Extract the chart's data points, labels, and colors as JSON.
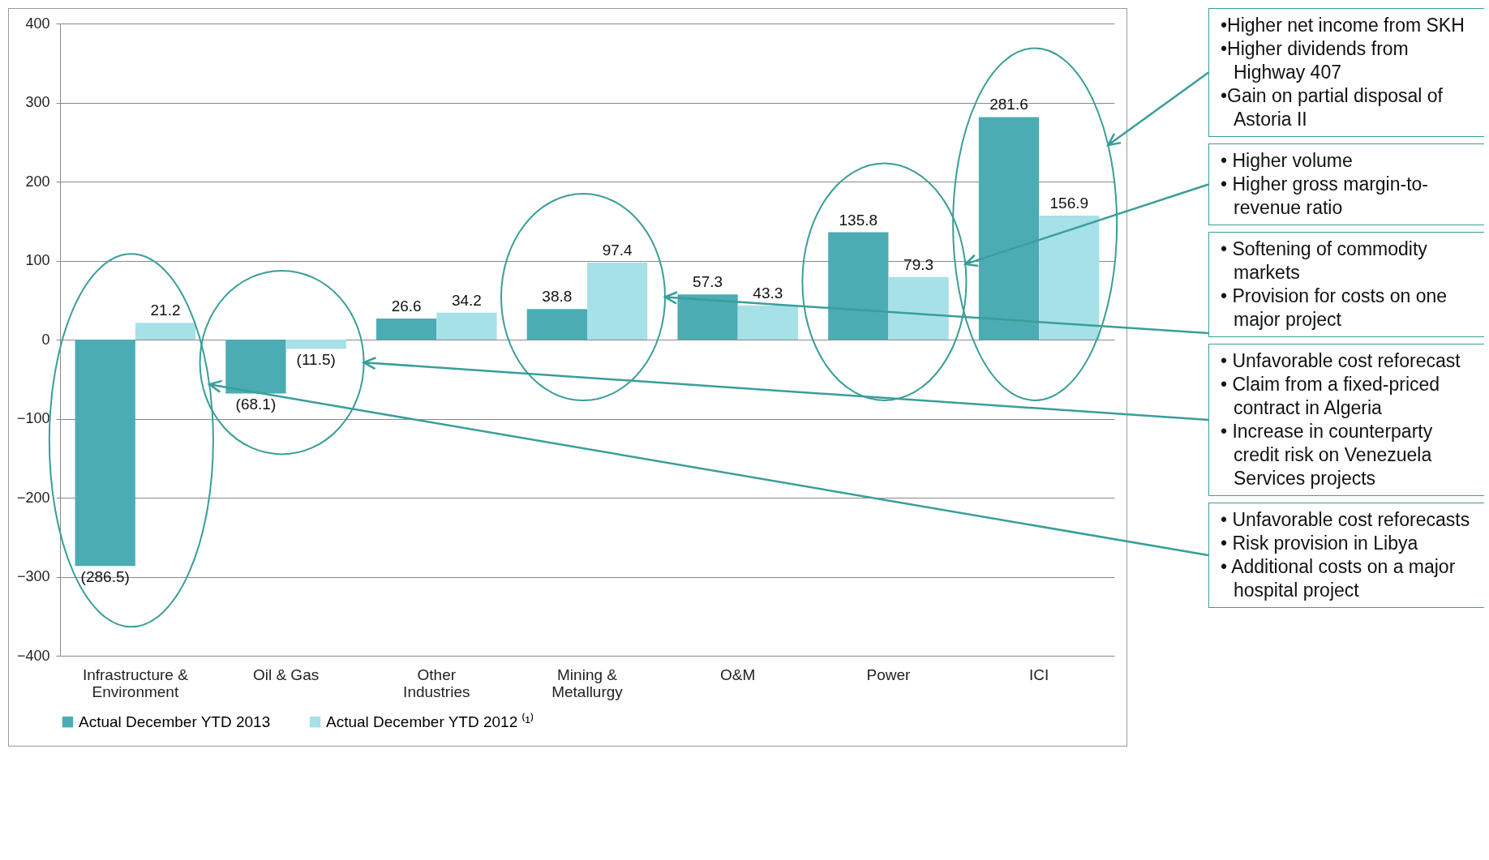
{
  "chart_data": {
    "type": "bar",
    "categories": [
      "Infrastructure & Environment",
      "Oil & Gas",
      "Other Industries",
      "Mining & Metallurgy",
      "O&M",
      "Power",
      "ICI"
    ],
    "series": [
      {
        "name": "Actual December YTD  2013",
        "color": "#4bacb4",
        "values": [
          -286.5,
          -68.1,
          26.6,
          38.8,
          57.3,
          135.8,
          281.6
        ],
        "value_labels": [
          "(286.5)",
          "(68.1)",
          "26.6",
          "38.8",
          "57.3",
          "135.8",
          "281.6"
        ]
      },
      {
        "name": "Actual December YTD  2012 ⁽¹⁾",
        "color": "#a6e1e8",
        "values": [
          21.2,
          -11.5,
          34.2,
          97.4,
          43.3,
          79.3,
          156.9
        ],
        "value_labels": [
          "21.2",
          "(11.5)",
          "34.2",
          "97.4",
          "43.3",
          "79.3",
          "156.9"
        ]
      }
    ],
    "ylim": [
      -400,
      400
    ],
    "yticks": [
      -400,
      -300,
      -200,
      -100,
      0,
      100,
      200,
      300,
      400
    ],
    "grid": "y",
    "legend": "bottom",
    "annotations": [
      "•Higher net income from SKH\n•Higher dividends from Highway 407\n•Gain on partial disposal of Astoria II",
      "• Higher volume\n• Higher gross margin-to-revenue ratio",
      "• Softening of commodity markets\n• Provision for costs on one major project",
      "• Unfavorable cost reforecast\n• Claim from a fixed-priced contract in Algeria\n• Increase in counterparty credit risk on Venezuela Services projects",
      "• Unfavorable cost reforecasts\n• Risk provision in Libya\n• Additional costs on a major hospital project"
    ]
  }
}
